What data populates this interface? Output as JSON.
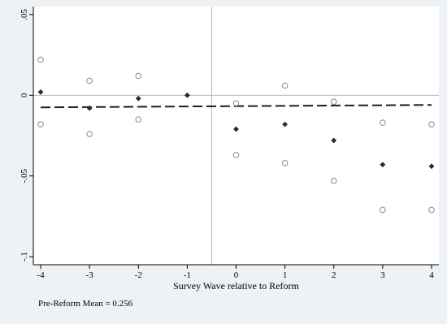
{
  "chart_data": {
    "type": "scatter",
    "xlabel": "Survey Wave relative to Reform",
    "ylabel": "",
    "note": "Pre-Reform Mean = 0.256",
    "xlim": [
      -4.15,
      4.15
    ],
    "ylim": [
      -0.105,
      0.055
    ],
    "x_ticks": [
      -4,
      -3,
      -2,
      -1,
      0,
      1,
      2,
      3,
      4
    ],
    "x_tick_labels": [
      "-4",
      "-3",
      "-2",
      "-1",
      "0",
      "1",
      "2",
      "3",
      "4"
    ],
    "y_ticks": [
      -0.1,
      -0.05,
      0,
      0.05
    ],
    "y_tick_labels": [
      "-.1",
      "-.05",
      "0",
      ".05"
    ],
    "reference_lines": {
      "x": -0.5,
      "y": 0
    },
    "series": [
      {
        "marker": "diamond-filled",
        "x": [
          -4,
          -3,
          -2,
          -1,
          0,
          1,
          2,
          3,
          4
        ],
        "y": [
          0.002,
          -0.008,
          -0.002,
          0.0,
          -0.021,
          -0.018,
          -0.028,
          -0.043,
          -0.044
        ]
      },
      {
        "marker": "circle-open",
        "x": [
          -4,
          -3,
          -2,
          -1,
          0,
          1,
          2,
          3,
          4
        ],
        "y": [
          0.022,
          0.009,
          0.012,
          null,
          -0.005,
          0.006,
          -0.004,
          -0.017,
          -0.018
        ]
      },
      {
        "marker": "circle-open",
        "x": [
          -4,
          -3,
          -2,
          -1,
          0,
          1,
          2,
          3,
          4
        ],
        "y": [
          -0.018,
          -0.024,
          -0.015,
          null,
          -0.037,
          -0.042,
          -0.053,
          -0.071,
          -0.071
        ]
      }
    ],
    "trend_line": {
      "style": "dashed",
      "x": [
        -4,
        4
      ],
      "y": [
        -0.0075,
        -0.006
      ]
    },
    "colors": {
      "background": "#eef1f5",
      "plot_area": "#ffffff",
      "axis": "#000000",
      "reference": "#b5b5b5",
      "point": "#2b2b2b",
      "hollow": "#8a8a8a",
      "trend": "#1e1e1e"
    }
  }
}
